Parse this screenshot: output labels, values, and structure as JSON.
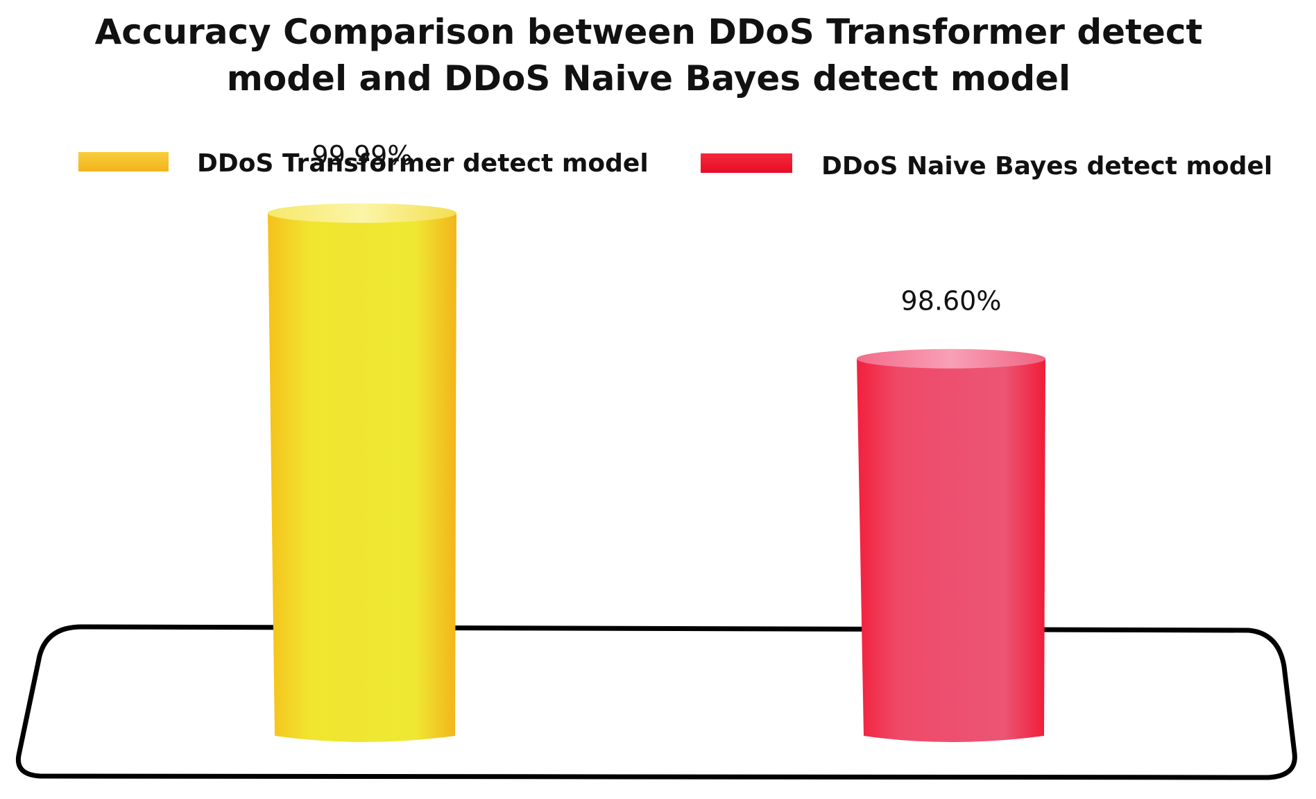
{
  "chart_data": {
    "type": "bar",
    "title_lines": [
      "Accuracy Comparison between DDoS Transformer detect",
      "model and DDoS Naive Bayes detect model"
    ],
    "categories": [
      "DDoS Transformer detect model",
      "DDoS Naive Bayes detect model"
    ],
    "series": [
      {
        "name": "DDoS Transformer detect model",
        "values": [
          99.99,
          null
        ],
        "color": "#f2e52f"
      },
      {
        "name": "DDoS Naive Bayes detect model",
        "values": [
          null,
          98.6
        ],
        "color": "#ec4f6e"
      }
    ],
    "data_labels": [
      "99.99%",
      "98.60%"
    ],
    "legend": [
      {
        "label": "DDoS Transformer detect model",
        "color": "#fbc62a"
      },
      {
        "label": "DDoS Naive Bayes detect model",
        "color": "#f0142f"
      }
    ],
    "legend_position": "top",
    "ylim": [
      95,
      100.5
    ],
    "grid": false,
    "style": "3d-cylinder"
  }
}
